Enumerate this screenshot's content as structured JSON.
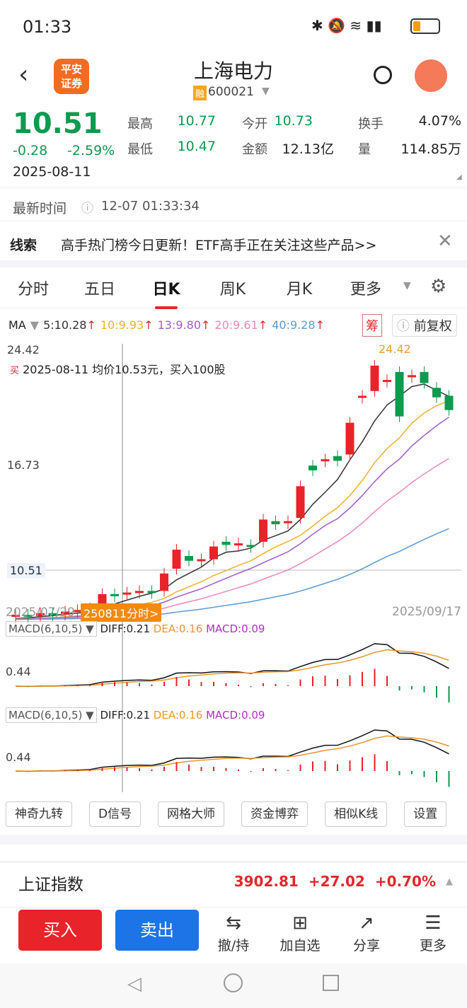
{
  "status": {
    "time": "01:33"
  },
  "header": {
    "logo": "平安证券",
    "title": "上海电力",
    "badge": "融",
    "code": "600021"
  },
  "quote": {
    "price": "10.51",
    "change": "-0.28",
    "pct": "-2.59%",
    "date": "2025-08-11",
    "fields": [
      {
        "l": "最高",
        "v": "10.77",
        "c": "green"
      },
      {
        "l": "今开",
        "v": "10.73",
        "c": "green"
      },
      {
        "l": "换手",
        "v": "4.07%",
        "c": ""
      },
      {
        "l": "最低",
        "v": "10.47",
        "c": "green"
      },
      {
        "l": "金额",
        "v": "12.13亿",
        "c": ""
      },
      {
        "l": "量",
        "v": "114.85万",
        "c": ""
      }
    ]
  },
  "latest": {
    "label": "最新时间",
    "time": "12-07 01:33:34"
  },
  "clue": {
    "label": "线索",
    "text": "高手热门榜今日更新！ETF高手正在关注这些产品>>"
  },
  "tabs": [
    "分时",
    "五日",
    "日K",
    "周K",
    "月K",
    "更多"
  ],
  "ma": {
    "label": "MA",
    "items": [
      {
        "t": "5:10.28",
        "c": "#333"
      },
      {
        "t": "10:9.93",
        "c": "#f0b030"
      },
      {
        "t": "13:9.80",
        "c": "#a05ccc"
      },
      {
        "t": "20:9.61",
        "c": "#ee88bb"
      },
      {
        "t": "40:9.28",
        "c": "#5b9bd5"
      }
    ],
    "chip": "筹",
    "adjust": "前复权"
  },
  "chart": {
    "max": "24.42",
    "mid": "16.73",
    "cur": "10.51",
    "note_tag": "买",
    "note": "2025-08-11 均价10.53元，买入100股",
    "start": "2025/07/29",
    "end": "2025/09/17",
    "pill": "250811分时>",
    "hi_label": "24.42"
  },
  "chart_data": {
    "type": "candlestick",
    "ylim": [
      7,
      24.42
    ],
    "candles": [
      [
        7.6,
        7.7
      ],
      [
        7.7,
        7.6
      ],
      [
        7.6,
        7.8
      ],
      [
        7.8,
        7.7
      ],
      [
        7.7,
        7.9
      ],
      [
        7.9,
        8.0
      ],
      [
        8.0,
        8.1
      ],
      [
        8.4,
        9.0
      ],
      [
        9.0,
        8.9
      ],
      [
        9.0,
        9.1
      ],
      [
        9.1,
        9.2
      ],
      [
        9.2,
        9.1
      ],
      [
        9.2,
        10.3
      ],
      [
        10.6,
        11.8
      ],
      [
        11.4,
        11.1
      ],
      [
        11.2,
        11.2
      ],
      [
        11.2,
        12.0
      ],
      [
        12.3,
        12.1
      ],
      [
        12.1,
        12.2
      ],
      [
        12.1,
        12.0
      ],
      [
        12.3,
        13.7
      ],
      [
        13.6,
        13.4
      ],
      [
        13.6,
        13.6
      ],
      [
        13.8,
        15.8
      ],
      [
        17.1,
        16.8
      ],
      [
        17.5,
        17.5
      ],
      [
        17.7,
        17.4
      ],
      [
        17.8,
        19.8
      ],
      [
        21.5,
        21.5
      ],
      [
        21.8,
        23.4
      ],
      [
        22.5,
        22.5
      ],
      [
        23.0,
        20.2
      ],
      [
        22.8,
        22.8
      ],
      [
        23.0,
        22.3
      ],
      [
        22.0,
        21.4
      ],
      [
        21.5,
        20.6
      ]
    ],
    "macd": {
      "label": "MACD(6,10,5)",
      "diff": "DIFF:0.21",
      "dea": "DEA:0.16",
      "macd": "MACD:0.09",
      "axis": "0.44"
    }
  },
  "tools": [
    "神奇九转",
    "D信号",
    "网格大师",
    "资金博弈",
    "相似K线",
    "设置"
  ],
  "index": {
    "name": "上证指数",
    "value": "3902.81",
    "chg": "+27.02",
    "pct": "+0.70%"
  },
  "bottom": {
    "buy": "买入",
    "sell": "卖出",
    "actions": [
      {
        "i": "⇆",
        "t": "撤/持"
      },
      {
        "i": "⊞",
        "t": "加自选"
      },
      {
        "i": "↗",
        "t": "分享"
      },
      {
        "i": "☰",
        "t": "更多"
      }
    ]
  }
}
